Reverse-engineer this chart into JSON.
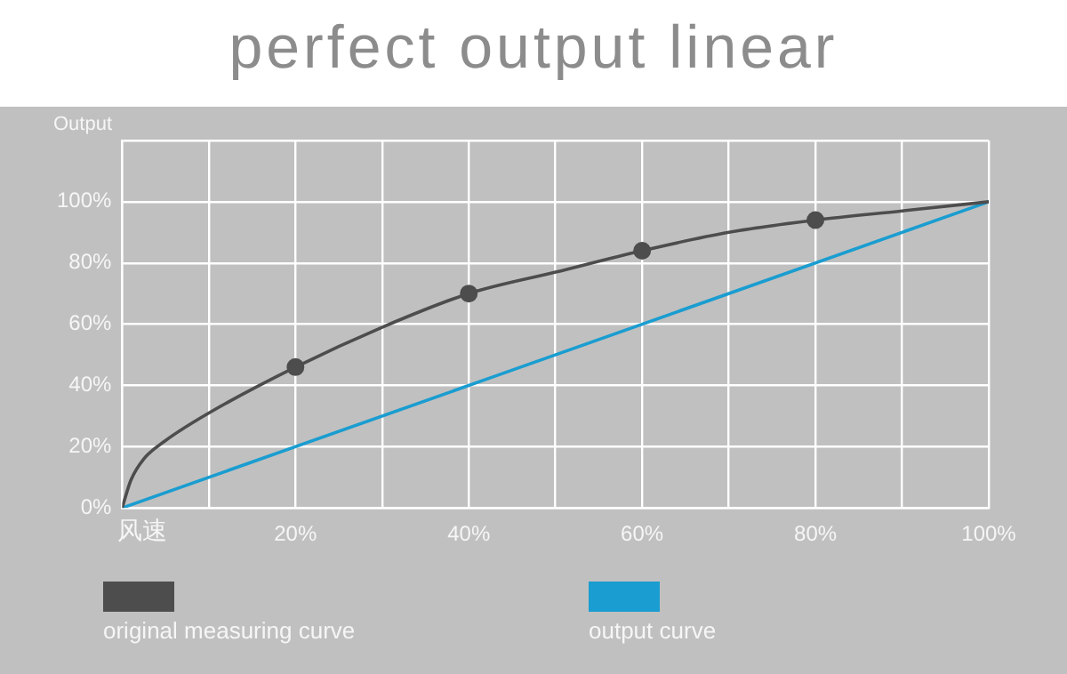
{
  "chart_data": {
    "type": "line",
    "title": "perfect output linear",
    "ylabel": "Output",
    "xlabel": "风速",
    "xlim": [
      0,
      100
    ],
    "ylim": [
      0,
      120
    ],
    "xticks": [
      {
        "value": 0,
        "label": null
      },
      {
        "value": 10,
        "label": null
      },
      {
        "value": 20,
        "label": "20%"
      },
      {
        "value": 30,
        "label": null
      },
      {
        "value": 40,
        "label": "40%"
      },
      {
        "value": 50,
        "label": null
      },
      {
        "value": 60,
        "label": "60%"
      },
      {
        "value": 70,
        "label": null
      },
      {
        "value": 80,
        "label": "80%"
      },
      {
        "value": 90,
        "label": null
      },
      {
        "value": 100,
        "label": "100%"
      }
    ],
    "yticks": [
      {
        "value": 0,
        "label": "0%"
      },
      {
        "value": 20,
        "label": "20%"
      },
      {
        "value": 40,
        "label": "40%"
      },
      {
        "value": 60,
        "label": "60%"
      },
      {
        "value": 80,
        "label": "80%"
      },
      {
        "value": 100,
        "label": "100%"
      },
      {
        "value": 120,
        "label": null
      }
    ],
    "grid": true,
    "legend": "bottom",
    "series": [
      {
        "name": "original measuring curve",
        "color": "#4d4d4d",
        "marker": "none",
        "x": [
          0,
          1,
          2.5,
          5,
          10,
          20,
          30,
          40,
          50,
          60,
          70,
          80,
          90,
          100
        ],
        "values": [
          0,
          9,
          16,
          22,
          31,
          46,
          59,
          70,
          77,
          84,
          90,
          94,
          97,
          100
        ]
      },
      {
        "type": "scatter",
        "color": "#4d4d4d",
        "marker": "circle",
        "x": [
          20,
          40,
          60,
          80
        ],
        "values": [
          46,
          70,
          84,
          94
        ]
      },
      {
        "name": "output curve",
        "color": "#1a9dd0",
        "marker": "none",
        "x": [
          0,
          100
        ],
        "values": [
          0,
          100
        ]
      }
    ]
  }
}
